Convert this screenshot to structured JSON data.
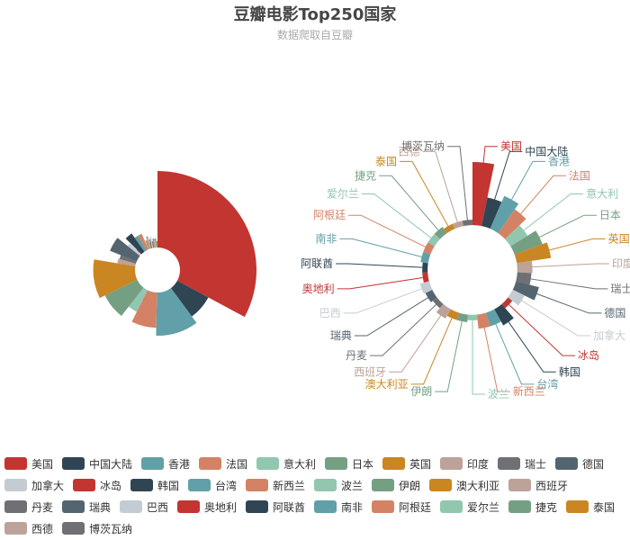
{
  "chart_data": {
    "type": "pie",
    "title": "豆瓣电影Top250国家",
    "subtitle": "数据爬取自豆瓣",
    "rose_type": "radius",
    "categories": [
      "美国",
      "中国大陆",
      "香港",
      "法国",
      "意大利",
      "日本",
      "英国",
      "印度",
      "瑞士",
      "德国",
      "加拿大",
      "冰岛",
      "韩国",
      "台湾",
      "新西兰",
      "波兰",
      "伊朗",
      "澳大利亚",
      "西班牙",
      "丹麦",
      "瑞典",
      "巴西",
      "奥地利",
      "阿联酋",
      "南非",
      "阿根廷",
      "爱尔兰",
      "捷克",
      "泰国",
      "西德",
      "博茨瓦纳"
    ],
    "values": [
      141,
      30,
      45,
      30,
      14,
      31,
      42,
      8,
      7,
      20,
      6,
      1,
      12,
      7,
      7,
      1,
      2,
      2,
      4,
      1,
      2,
      3,
      1,
      1,
      2,
      2,
      2,
      2,
      1,
      1,
      1
    ],
    "colors": [
      "#c23531",
      "#2f4554",
      "#61a0a8",
      "#d48265",
      "#91c7ae",
      "#749f83",
      "#ca8622",
      "#bda29a",
      "#6e7074",
      "#546570",
      "#c4ccd3"
    ],
    "legend_position": "bottom"
  }
}
